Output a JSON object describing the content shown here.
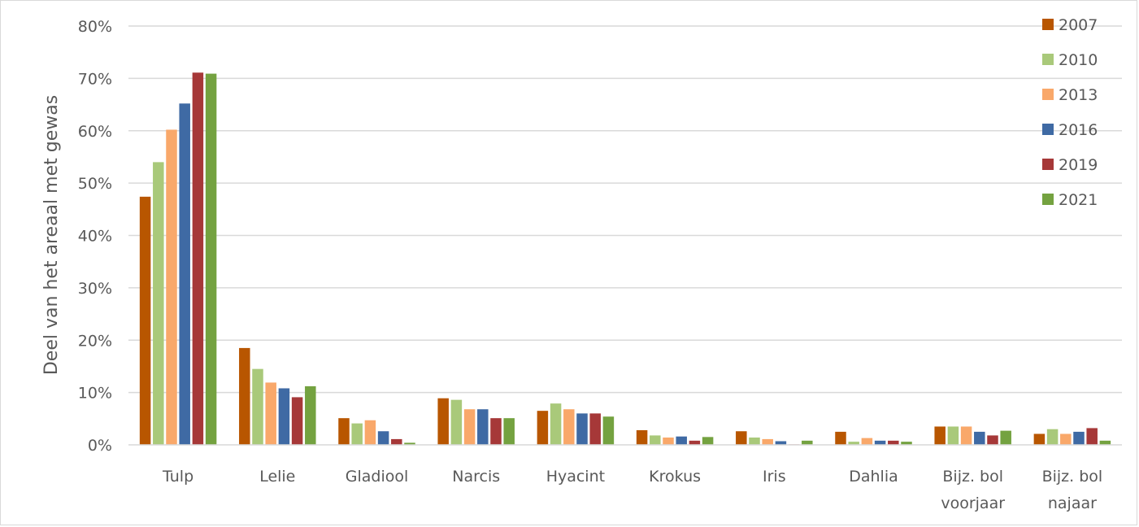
{
  "chart_data": {
    "type": "bar",
    "title": "",
    "xlabel": "",
    "ylabel": "Deel van het areaal met gewas",
    "ylim": [
      0,
      80
    ],
    "yticks": [
      "0%",
      "10%",
      "20%",
      "30%",
      "40%",
      "50%",
      "60%",
      "70%",
      "80%"
    ],
    "grid": true,
    "legend_position": "top-right",
    "categories": [
      [
        "Tulp"
      ],
      [
        "Lelie"
      ],
      [
        "Gladiool"
      ],
      [
        "Narcis"
      ],
      [
        "Hyacint"
      ],
      [
        "Krokus"
      ],
      [
        "Iris"
      ],
      [
        "Dahlia"
      ],
      [
        "Bijz. bol",
        "voorjaar"
      ],
      [
        "Bijz. bol",
        "najaar"
      ]
    ],
    "series": [
      {
        "name": "2007",
        "color": "#b85600",
        "values": [
          47.4,
          18.5,
          5.1,
          8.9,
          6.5,
          2.8,
          2.6,
          2.5,
          3.5,
          2.1
        ]
      },
      {
        "name": "2010",
        "color": "#a9c97a",
        "values": [
          54.0,
          14.5,
          4.1,
          8.6,
          7.9,
          1.8,
          1.4,
          0.6,
          3.5,
          3.0
        ]
      },
      {
        "name": "2013",
        "color": "#f9a86a",
        "values": [
          60.2,
          11.9,
          4.7,
          6.8,
          6.8,
          1.4,
          1.1,
          1.3,
          3.5,
          2.1
        ]
      },
      {
        "name": "2016",
        "color": "#3f6aa4",
        "values": [
          65.2,
          10.8,
          2.6,
          6.8,
          6.0,
          1.6,
          0.7,
          0.8,
          2.5,
          2.5
        ]
      },
      {
        "name": "2019",
        "color": "#a63838",
        "values": [
          71.1,
          9.1,
          1.1,
          5.1,
          6.0,
          0.8,
          0.1,
          0.8,
          1.8,
          3.2
        ]
      },
      {
        "name": "2021",
        "color": "#74a240",
        "values": [
          70.9,
          11.2,
          0.4,
          5.1,
          5.4,
          1.5,
          0.8,
          0.6,
          2.7,
          0.8
        ]
      }
    ]
  }
}
